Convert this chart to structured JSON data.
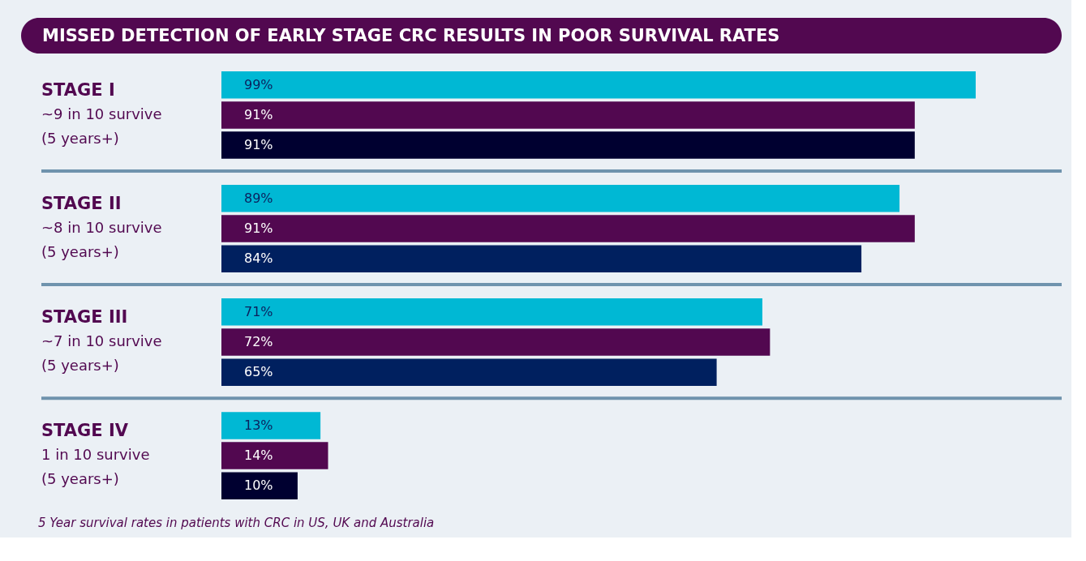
{
  "chart_data": {
    "type": "bar",
    "orientation": "horizontal",
    "title": "MISSED DETECTION OF EARLY STAGE CRC RESULTS IN POOR SURVIVAL RATES",
    "categories": [
      "STAGE I\n~9 in 10 survive\n(5 years+)",
      "STAGE II\n~8 in 10 survive\n(5 years+)",
      "STAGE III\n~7 in 10 survive\n(5 years+)",
      "STAGE IV\n1 in 10 survive\n(5 years+)"
    ],
    "series": [
      {
        "color": "#00b8d4",
        "values": [
          99,
          89,
          71,
          13
        ],
        "value_labels": [
          "99%",
          "89%",
          "71%",
          "13%"
        ]
      },
      {
        "color": "#520850",
        "values": [
          91,
          91,
          72,
          14
        ],
        "value_labels": [
          "91%",
          "91%",
          "72%",
          "14%"
        ]
      },
      {
        "colors": [
          "#000030",
          "#00205f",
          "#00205f",
          "#000030"
        ],
        "values": [
          91,
          84,
          65,
          10
        ],
        "value_labels": [
          "91%",
          "84%",
          "65%",
          "10%"
        ]
      }
    ],
    "annotations": [
      "5 Year survival rates in patients with CRC in US, UK and Australia"
    ]
  }
}
